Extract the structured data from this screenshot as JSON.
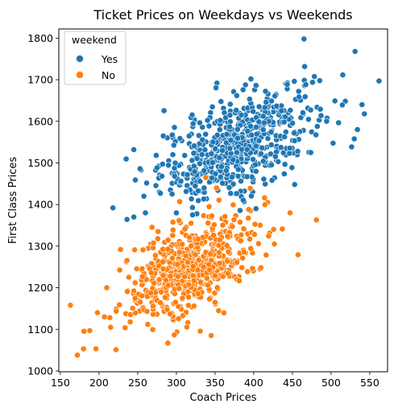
{
  "chart_data": {
    "type": "scatter",
    "title": "Ticket Prices on Weekdays vs Weekends",
    "xlabel": "Coach Prices",
    "ylabel": "First Class Prices",
    "xlim": [
      148,
      573
    ],
    "ylim": [
      998,
      1822
    ],
    "xticks": [
      150,
      200,
      250,
      300,
      350,
      400,
      450,
      500,
      550
    ],
    "yticks": [
      1000,
      1100,
      1200,
      1300,
      1400,
      1500,
      1600,
      1700,
      1800
    ],
    "grid": false,
    "legend": {
      "title": "weekend",
      "placement": "top-left",
      "entries": [
        {
          "label": "Yes",
          "color": "#1f77b4"
        },
        {
          "label": "No",
          "color": "#ff7f0e"
        }
      ]
    },
    "series": [
      {
        "name": "Yes",
        "color": "#1f77b4",
        "n": 600,
        "center": [
          380,
          1545
        ],
        "spread": [
          50,
          68
        ],
        "corr": 0.56,
        "clip_x": [
          218,
          562
        ],
        "clip_y": [
          1360,
          1800
        ],
        "outliers": [
          [
            465,
            1798
          ],
          [
            531,
            1768
          ],
          [
            562,
            1697
          ],
          [
            218,
            1392
          ],
          [
            245,
            1532
          ],
          [
            247,
            1459
          ],
          [
            253,
            1486
          ],
          [
            258,
            1420
          ],
          [
            260,
            1380
          ],
          [
            283,
            1565
          ],
          [
            540,
            1640
          ],
          [
            543,
            1618
          ],
          [
            534,
            1580
          ],
          [
            300,
            1380
          ],
          [
            245,
            1370
          ]
        ]
      },
      {
        "name": "No",
        "color": "#ff7f0e",
        "n": 600,
        "center": [
          320,
          1250
        ],
        "spread": [
          45,
          62
        ],
        "corr": 0.6,
        "clip_x": [
          163,
          482
        ],
        "clip_y": [
          1035,
          1470
        ],
        "outliers": [
          [
            163,
            1158
          ],
          [
            172,
            1038
          ],
          [
            180,
            1053
          ],
          [
            188,
            1097
          ],
          [
            198,
            1140
          ],
          [
            207,
            1130
          ],
          [
            215,
            1105
          ],
          [
            222,
            1051
          ],
          [
            262,
            1143
          ],
          [
            289,
            1067
          ],
          [
            345,
            1085
          ],
          [
            481,
            1363
          ],
          [
            338,
            1465
          ],
          [
            352,
            1440
          ],
          [
            447,
            1380
          ],
          [
            350,
            1165
          ],
          [
            210,
            1200
          ]
        ]
      }
    ]
  }
}
